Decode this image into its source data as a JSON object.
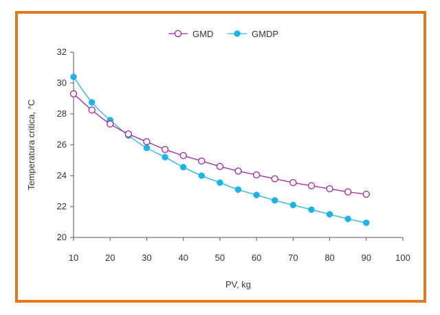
{
  "chart_data": {
    "type": "line",
    "xlabel": "PV, kg",
    "ylabel": "Temperatura critica, °C",
    "xlim": [
      10,
      100
    ],
    "ylim": [
      20,
      32
    ],
    "xticks": [
      10,
      20,
      30,
      40,
      50,
      60,
      70,
      80,
      90,
      100
    ],
    "yticks": [
      20,
      22,
      24,
      26,
      28,
      30,
      32
    ],
    "grid": false,
    "legend_position": "top-center",
    "x": [
      10,
      15,
      20,
      25,
      30,
      35,
      40,
      45,
      50,
      55,
      60,
      65,
      70,
      75,
      80,
      85,
      90
    ],
    "series": [
      {
        "name": "GMD",
        "color": "#a020a0",
        "marker": "open-circle",
        "values": [
          29.3,
          28.25,
          27.35,
          26.7,
          26.2,
          25.7,
          25.3,
          24.95,
          24.6,
          24.3,
          24.05,
          23.8,
          23.55,
          23.35,
          23.15,
          22.95,
          22.8
        ]
      },
      {
        "name": "GMDP",
        "color": "#19b5e6",
        "marker": "filled-circle",
        "values": [
          30.4,
          28.75,
          27.6,
          26.6,
          25.8,
          25.2,
          24.55,
          24.0,
          23.55,
          23.1,
          22.75,
          22.4,
          22.1,
          21.8,
          21.5,
          21.2,
          20.95
        ]
      }
    ]
  }
}
